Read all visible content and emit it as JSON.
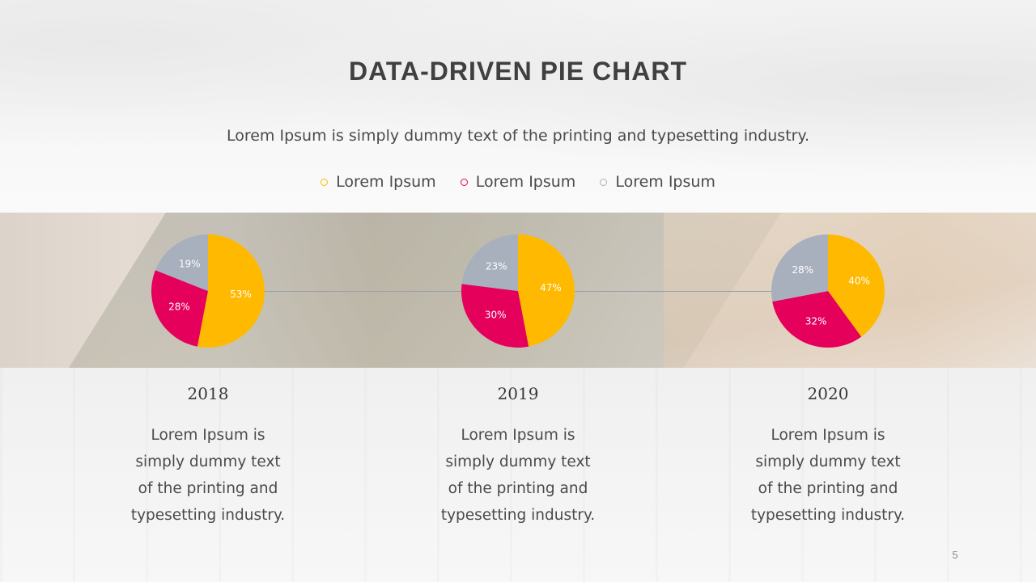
{
  "slide": {
    "title": "DATA-DRIVEN PIE CHART",
    "subtitle": "Lorem Ipsum is simply dummy text of the printing and typesetting industry.",
    "page_number": "5"
  },
  "colors": {
    "series_a": "#FFB900",
    "series_b": "#E5005B",
    "series_c": "#A8B0BD",
    "label_text": "#FFFFFF",
    "connector": "#9AA0A8"
  },
  "legend": [
    {
      "label": "Lorem Ipsum",
      "color": "#FFB900"
    },
    {
      "label": "Lorem Ipsum",
      "color": "#E5005B"
    },
    {
      "label": "Lorem Ipsum",
      "color": "#A8B0BD"
    }
  ],
  "chart_data": {
    "type": "pie",
    "series_names": [
      "Lorem Ipsum",
      "Lorem Ipsum",
      "Lorem Ipsum"
    ],
    "pies": [
      {
        "year": "2018",
        "values": [
          53,
          28,
          19
        ],
        "labels": [
          "53%",
          "28%",
          "19%"
        ]
      },
      {
        "year": "2019",
        "values": [
          47,
          30,
          23
        ],
        "labels": [
          "47%",
          "30%",
          "23%"
        ]
      },
      {
        "year": "2020",
        "values": [
          40,
          32,
          28
        ],
        "labels": [
          "40%",
          "32%",
          "28%"
        ]
      }
    ]
  },
  "columns": [
    {
      "year": "2018",
      "lines": [
        "Lorem Ipsum is",
        "simply dummy text",
        "of the printing and",
        "typesetting industry."
      ]
    },
    {
      "year": "2019",
      "lines": [
        "Lorem Ipsum is",
        "simply dummy text",
        "of the printing and",
        "typesetting industry."
      ]
    },
    {
      "year": "2020",
      "lines": [
        "Lorem Ipsum is",
        "simply dummy text",
        "of the printing and",
        "typesetting industry."
      ]
    }
  ]
}
